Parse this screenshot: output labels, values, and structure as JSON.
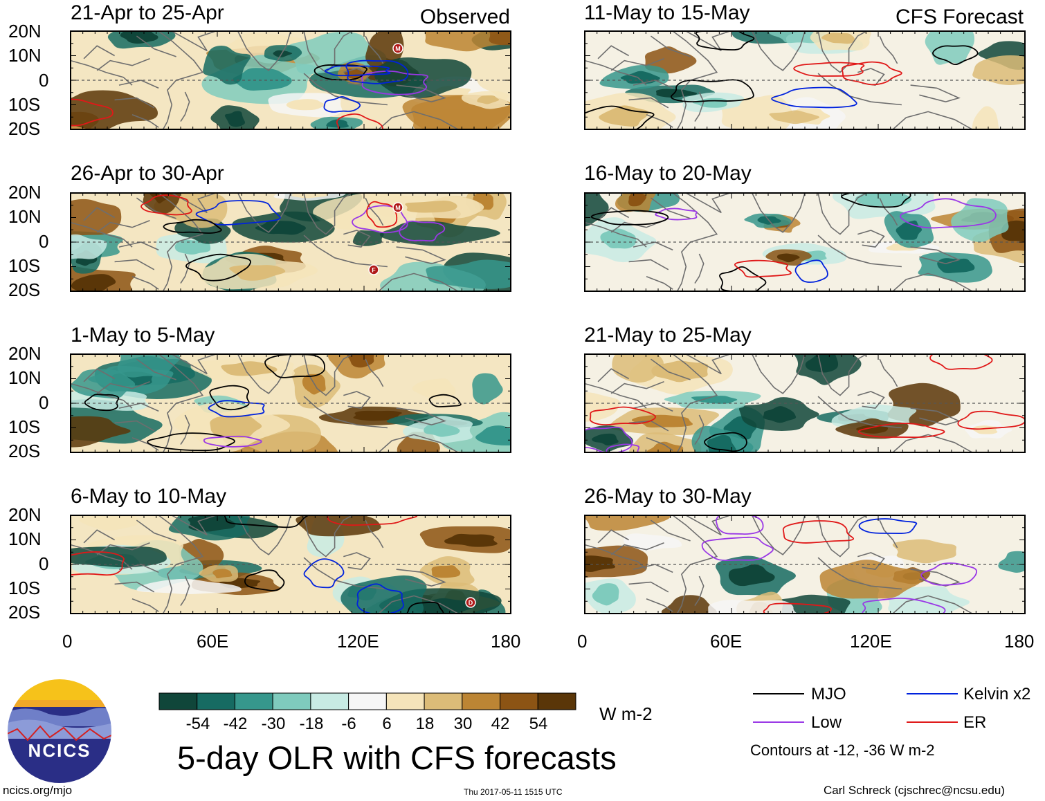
{
  "main_title": "5-day OLR with CFS forecasts",
  "headers": {
    "observed": "Observed",
    "forecast": "CFS Forecast"
  },
  "panels": [
    {
      "title": "21-Apr to 25-Apr",
      "column": "observed"
    },
    {
      "title": "26-Apr to 30-Apr",
      "column": "observed"
    },
    {
      "title": "1-May to 5-May",
      "column": "observed"
    },
    {
      "title": "6-May to 10-May",
      "column": "observed"
    },
    {
      "title": "11-May to 15-May",
      "column": "forecast"
    },
    {
      "title": "16-May to 20-May",
      "column": "forecast"
    },
    {
      "title": "21-May to 25-May",
      "column": "forecast"
    },
    {
      "title": "26-May to 30-May",
      "column": "forecast"
    }
  ],
  "lat_labels": [
    "20N",
    "10N",
    "0",
    "10S",
    "20S"
  ],
  "lon_labels": [
    "0",
    "60E",
    "120E",
    "180"
  ],
  "colorbar": {
    "units": "W m-2",
    "ticks": [
      "-54",
      "-42",
      "-30",
      "-18",
      "-6",
      "6",
      "18",
      "30",
      "42",
      "54"
    ],
    "colors": [
      "#10463a",
      "#166b62",
      "#36978c",
      "#7fcbbd",
      "#c8ebe4",
      "#f6f6f6",
      "#f5e4ba",
      "#dcbc78",
      "#bc8534",
      "#8c5414",
      "#5a3608"
    ]
  },
  "legend": {
    "items": [
      {
        "label": "MJO",
        "color": "#000000"
      },
      {
        "label": "Kelvin x2",
        "color": "#0022dd"
      },
      {
        "label": "Low",
        "color": "#9a38e6"
      },
      {
        "label": "ER",
        "color": "#e01818"
      }
    ],
    "contour_note": "Contours at -12, -36 W m-2"
  },
  "logo": {
    "text": "NCICS"
  },
  "footer": {
    "left": "ncics.org/mjo",
    "center": "Thu 2017-05-11 1515 UTC",
    "right": "Carl Schreck (cjschrec@ncsu.edu)"
  },
  "storm_markers": [
    "M",
    "M",
    "F",
    "D"
  ]
}
